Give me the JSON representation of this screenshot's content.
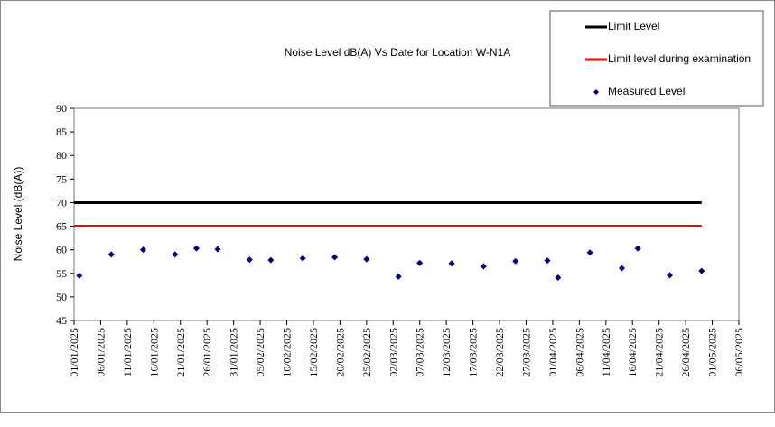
{
  "chart_data": {
    "type": "scatter",
    "title": "Noise Level dB(A) Vs Date for Location W-N1A",
    "y_label": "Noise Level (dB(A))",
    "xlim": [
      "01/01/2025",
      "06/05/2025"
    ],
    "xticks": [
      "01/01/2025",
      "06/01/2025",
      "11/01/2025",
      "16/01/2025",
      "21/01/2025",
      "26/01/2025",
      "31/01/2025",
      "05/02/2025",
      "10/02/2025",
      "15/02/2025",
      "20/02/2025",
      "25/02/2025",
      "02/03/2025",
      "07/03/2025",
      "12/03/2025",
      "17/03/2025",
      "22/03/2025",
      "27/03/2025",
      "01/04/2025",
      "06/04/2025",
      "11/04/2025",
      "16/04/2025",
      "21/04/2025",
      "26/04/2025",
      "01/05/2025",
      "06/05/2025"
    ],
    "ylim": [
      45,
      90
    ],
    "yticks": [
      45,
      50,
      55,
      60,
      65,
      70,
      75,
      80,
      85,
      90
    ],
    "series": [
      {
        "name": "Limit Level",
        "color": "#000000",
        "kind": "line",
        "x": [
          "01/01/2025",
          "29/04/2025"
        ],
        "values": [
          70,
          70
        ]
      },
      {
        "name": "Limit level during examination",
        "color": "#ff0000",
        "kind": "line",
        "x": [
          "01/01/2025",
          "29/04/2025"
        ],
        "values": [
          65,
          65
        ]
      },
      {
        "name": "Measured Level",
        "color": "#000080",
        "kind": "marker",
        "x": [
          "02/01/2025",
          "08/01/2025",
          "14/01/2025",
          "20/01/2025",
          "24/01/2025",
          "28/01/2025",
          "03/02/2025",
          "07/02/2025",
          "13/02/2025",
          "19/02/2025",
          "25/02/2025",
          "03/03/2025",
          "07/03/2025",
          "13/03/2025",
          "19/03/2025",
          "25/03/2025",
          "31/03/2025",
          "02/04/2025",
          "08/04/2025",
          "14/04/2025",
          "17/04/2025",
          "23/04/2025",
          "29/04/2025"
        ],
        "values": [
          54.5,
          59,
          60,
          59,
          60.3,
          60.1,
          57.9,
          57.8,
          58.2,
          58.4,
          58,
          54.3,
          57.2,
          57.1,
          56.5,
          57.6,
          57.7,
          54.1,
          59.4,
          56.1,
          60.3,
          54.6,
          55.5
        ]
      }
    ]
  }
}
